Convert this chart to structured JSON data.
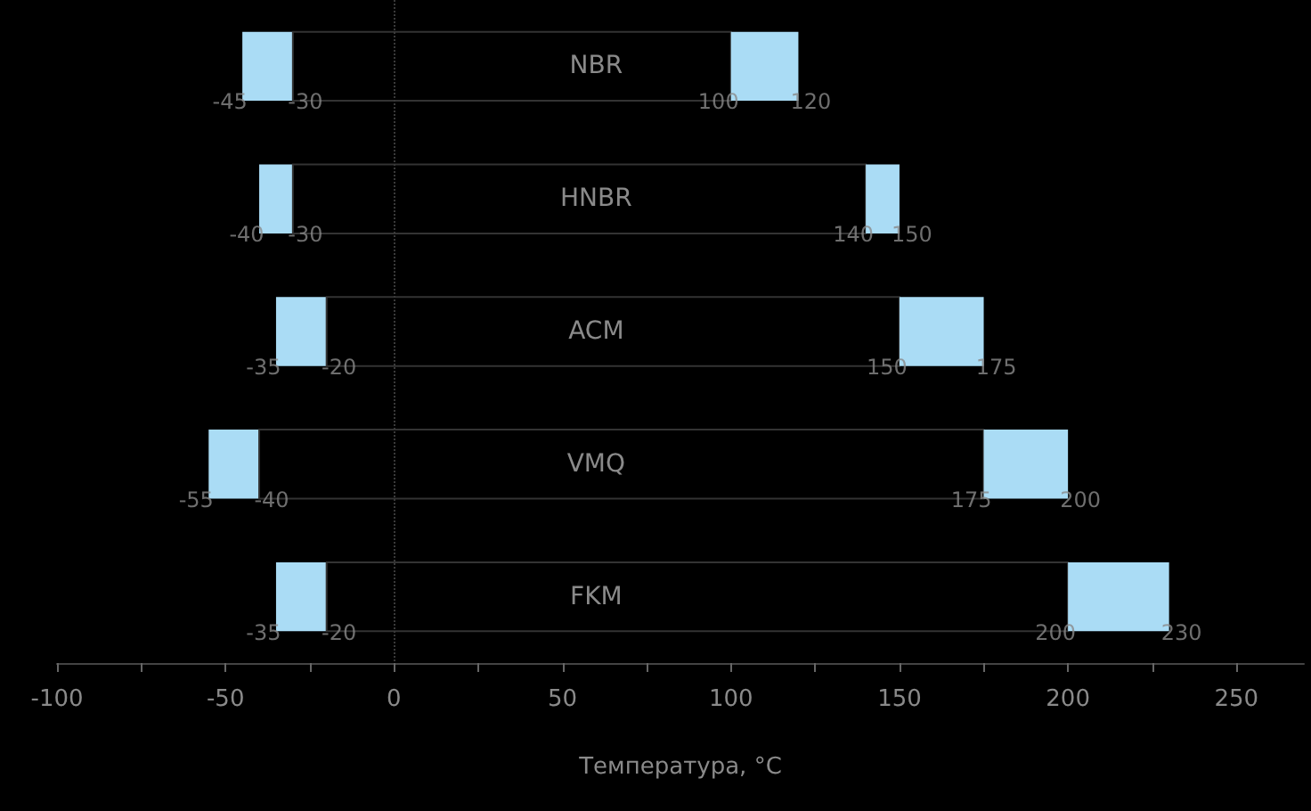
{
  "chart_data": {
    "type": "bar",
    "orientation": "horizontal",
    "xlabel": "Температура, °C",
    "categories": [
      "NBR",
      "HNBR",
      "ACM",
      "VMQ",
      "FKM"
    ],
    "series": [
      {
        "color": "#aadcf5",
        "base": [
          -45,
          -40,
          -35,
          -55,
          -35
        ],
        "values": [
          15,
          10,
          15,
          15,
          15
        ]
      },
      {
        "color": "#000000",
        "base": [
          -30,
          -30,
          -20,
          -40,
          -20
        ],
        "values": [
          130,
          170,
          170,
          215,
          220
        ]
      },
      {
        "color": "#aadcf5",
        "base": [
          100,
          140,
          150,
          175,
          200
        ],
        "values": [
          20,
          10,
          25,
          25,
          30
        ]
      }
    ],
    "xlim": [
      -100,
      270
    ],
    "xticks": [
      -100,
      {
        "value": -75,
        "label": null
      },
      -50,
      {
        "value": -25,
        "label": null
      },
      0,
      {
        "value": 25,
        "label": null
      },
      50,
      {
        "value": 75,
        "label": null
      },
      100,
      {
        "value": 125,
        "label": null
      },
      150,
      {
        "value": 175,
        "label": null
      },
      200,
      {
        "value": 225,
        "label": null
      },
      250
    ],
    "tick_labels": "x",
    "ref_lines": [
      {
        "axis": "x",
        "value": 0,
        "color": "#3a3a3a",
        "line_style": "dotted"
      }
    ],
    "annotations": [
      {
        "text": "-45",
        "x": -45,
        "y": "NBR"
      },
      {
        "text": "-30",
        "x": -30,
        "y": "NBR"
      },
      {
        "text": "100",
        "x": 100,
        "y": "NBR"
      },
      {
        "text": "120",
        "x": 120,
        "y": "NBR"
      },
      {
        "text": "-40",
        "x": -40,
        "y": "HNBR"
      },
      {
        "text": "-30",
        "x": -30,
        "y": "HNBR"
      },
      {
        "text": "140",
        "x": 140,
        "y": "HNBR"
      },
      {
        "text": "150",
        "x": 150,
        "y": "HNBR"
      },
      {
        "text": "-35",
        "x": -35,
        "y": "ACM"
      },
      {
        "text": "-20",
        "x": -20,
        "y": "ACM"
      },
      {
        "text": "150",
        "x": 150,
        "y": "ACM"
      },
      {
        "text": "175",
        "x": 175,
        "y": "ACM"
      },
      {
        "text": "-55",
        "x": -55,
        "y": "VMQ"
      },
      {
        "text": "-40",
        "x": -40,
        "y": "VMQ"
      },
      {
        "text": "175",
        "x": 175,
        "y": "VMQ"
      },
      {
        "text": "200",
        "x": 200,
        "y": "VMQ"
      },
      {
        "text": "-35",
        "x": -35,
        "y": "FKM"
      },
      {
        "text": "-20",
        "x": -20,
        "y": "FKM"
      },
      {
        "text": "200",
        "x": 200,
        "y": "FKM"
      },
      {
        "text": "230",
        "x": 230,
        "y": "FKM"
      }
    ]
  }
}
